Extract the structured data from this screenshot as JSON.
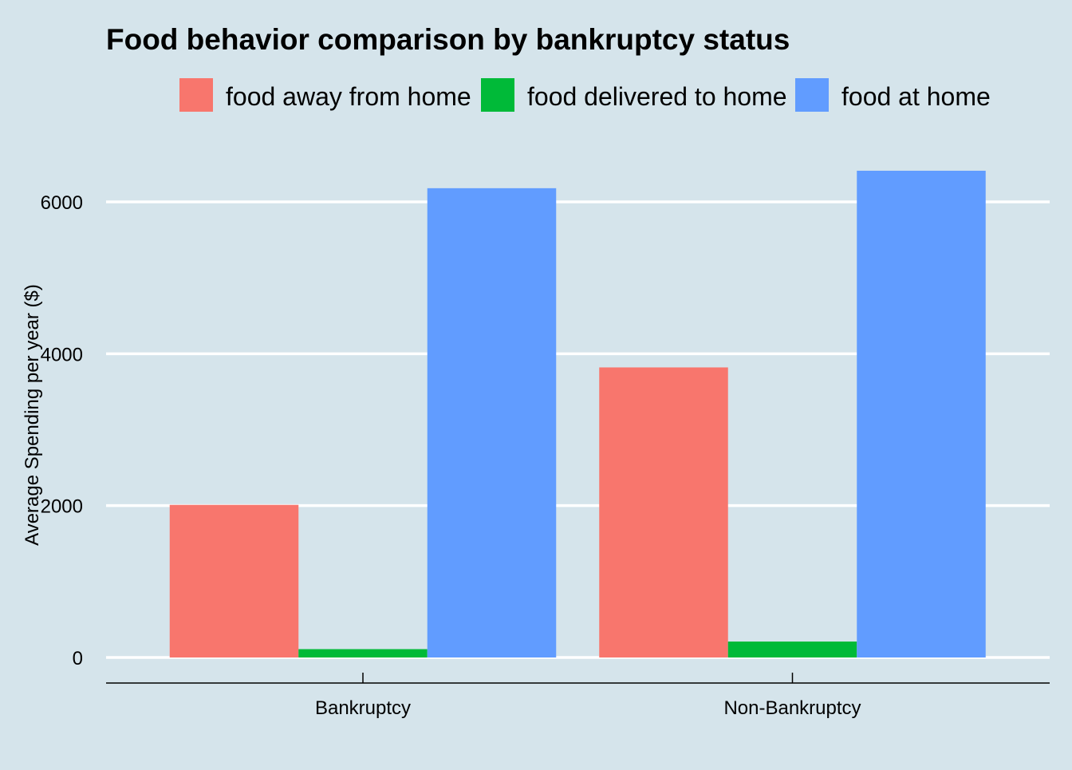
{
  "chart_data": {
    "type": "bar",
    "title": "Food behavior comparison by bankruptcy status",
    "xlabel": "",
    "ylabel": "Average Spending per year ($)",
    "categories": [
      "Bankruptcy",
      "Non-Bankruptcy"
    ],
    "series": [
      {
        "name": "food away from home",
        "color": "#f8766d",
        "values": [
          2010,
          3820
        ]
      },
      {
        "name": "food delivered to home",
        "color": "#00ba38",
        "values": [
          110,
          210
        ]
      },
      {
        "name": "food at home",
        "color": "#619cff",
        "values": [
          6180,
          6410
        ]
      }
    ],
    "ylim": [
      0,
      6720
    ],
    "yticks": [
      0,
      2000,
      4000,
      6000
    ],
    "grid": "horizontal major gridlines (white)",
    "legend_position": "top"
  },
  "colors": {
    "background": "#d5e4eb",
    "grid": "#ffffff",
    "axis": "#000000"
  }
}
